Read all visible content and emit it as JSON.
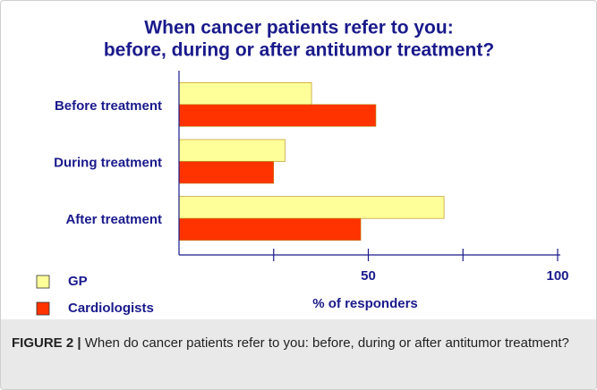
{
  "chart_data": {
    "type": "hbar",
    "title": [
      "When cancer patients refer to you:",
      "before, during or after antitumor treatment?"
    ],
    "categories": [
      "Before treatment",
      "During treatment",
      "After treatment"
    ],
    "series": [
      {
        "name": "GP",
        "color": "#ffff99",
        "values": [
          35,
          28,
          70
        ]
      },
      {
        "name": "Cardiologists",
        "color": "#ff3300",
        "values": [
          52,
          25,
          48
        ]
      }
    ],
    "xlabel": "% of responders",
    "xlim": [
      0,
      100
    ],
    "xticks": [
      50,
      100
    ],
    "xminor_ticks": [
      25,
      75
    ],
    "legend": "bottom-left"
  },
  "caption": {
    "label": "FIGURE 2 |",
    "text": "When do cancer patients refer to you: before, during or after antitumor treatment?"
  }
}
